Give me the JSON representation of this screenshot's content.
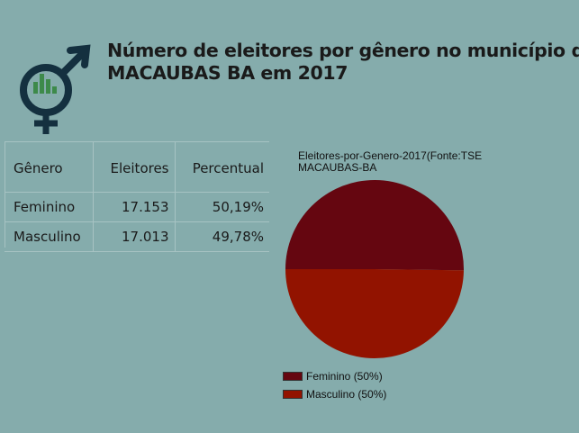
{
  "page": {
    "title_line1": "Número de eleitores por gênero no município de",
    "title_line2": "MACAUBAS BA em 2017",
    "logo_icon": "gender-chart-icon"
  },
  "table": {
    "headers": [
      "Gênero",
      "Eleitores",
      "Percentual"
    ],
    "rows": [
      [
        "Feminino",
        "17.153",
        "50,19%"
      ],
      [
        "Masculino",
        "17.013",
        "49,78%"
      ]
    ]
  },
  "chart_data": {
    "type": "pie",
    "title_line1": "Eleitores-por-Genero-2017(Fonte:TSE",
    "title_line2": "MACAUBAS-BA",
    "categories": [
      "Feminino",
      "Masculino"
    ],
    "values": [
      17153,
      17013
    ],
    "legend": [
      "Feminino (50%)",
      "Masculino (50%)"
    ],
    "colors": [
      "#650610",
      "#921300"
    ],
    "legend_position": "bottom"
  },
  "colors": {
    "background": "#85acac",
    "logo": "#14303f",
    "logo_bars": "#3d8a4a"
  }
}
